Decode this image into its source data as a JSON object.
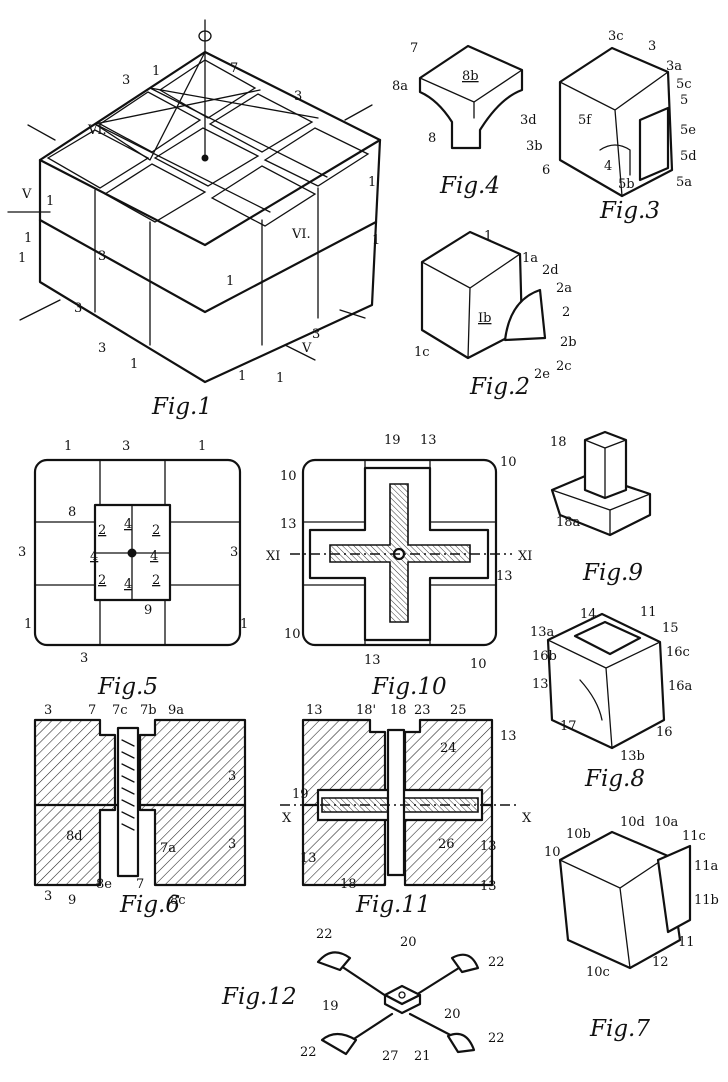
{
  "captions": {
    "fig1": "Fig.1",
    "fig2": "Fig.2",
    "fig3": "Fig.3",
    "fig4": "Fig.4",
    "fig5": "Fig.5",
    "fig6": "Fig.6",
    "fig7": "Fig.7",
    "fig8": "Fig.8",
    "fig9": "Fig.9",
    "fig10": "Fig.10",
    "fig11": "Fig.11",
    "fig12": "Fig.12"
  },
  "labels": {
    "fig1": [
      "1",
      "3",
      "7",
      "1",
      "3",
      "1",
      "3",
      "1",
      "VI.",
      "VI.",
      "V",
      "V",
      "1",
      "3",
      "3",
      "1",
      "1",
      "1",
      "3",
      "1",
      "1"
    ],
    "fig2": [
      "1",
      "1a",
      "2d",
      "2a",
      "Ib",
      "2",
      "2b",
      "1c",
      "2e",
      "2c"
    ],
    "fig3": [
      "3c",
      "3",
      "3a",
      "5c",
      "5",
      "3d",
      "5f",
      "5e",
      "3b",
      "5d",
      "6",
      "4",
      "5b",
      "5a"
    ],
    "fig4": [
      "7",
      "8a",
      "8b",
      "8"
    ],
    "fig5": [
      "1",
      "3",
      "1",
      "8",
      "2",
      "4",
      "2",
      "3",
      "4",
      "4",
      "3",
      "2",
      "4",
      "2",
      "1",
      "3",
      "9",
      "1"
    ],
    "fig6": [
      "3",
      "7",
      "7c",
      "7b",
      "9a",
      "3",
      "8d",
      "7a",
      "3",
      "3",
      "9",
      "8e",
      "7",
      "8c"
    ],
    "fig7": [
      "10b",
      "10d",
      "10a",
      "11c",
      "10",
      "11a",
      "11b",
      "11",
      "12",
      "10c"
    ],
    "fig8": [
      "14",
      "11",
      "15",
      "13a",
      "16c",
      "16b",
      "13",
      "16a",
      "17",
      "16",
      "13b"
    ],
    "fig9": [
      "18",
      "18a"
    ],
    "fig10": [
      "19",
      "13",
      "10",
      "10",
      "13",
      "XI",
      "XI",
      "13",
      "10",
      "13",
      "10"
    ],
    "fig11": [
      "13",
      "18'",
      "18",
      "23",
      "25",
      "13",
      "24",
      "19",
      "X",
      "X",
      "26",
      "13",
      "18",
      "13",
      "13"
    ],
    "fig12": [
      "22",
      "20",
      "19",
      "22",
      "20",
      "22",
      "27",
      "21",
      "22"
    ]
  }
}
